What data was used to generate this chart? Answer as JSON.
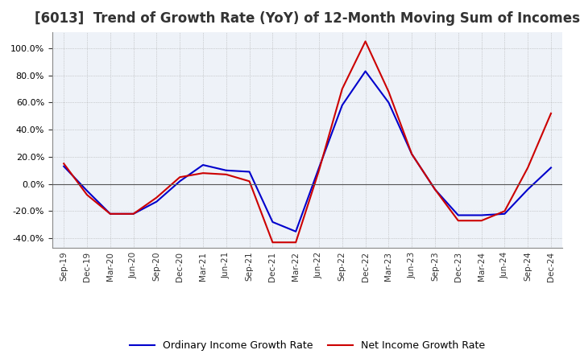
{
  "title": "[6013]  Trend of Growth Rate (YoY) of 12-Month Moving Sum of Incomes",
  "title_fontsize": 12,
  "ylim": [
    -0.47,
    1.12
  ],
  "yticks": [
    -0.4,
    -0.2,
    0.0,
    0.2,
    0.4,
    0.6,
    0.8,
    1.0
  ],
  "background_color": "#ffffff",
  "plot_bg_color": "#eef2f8",
  "grid_color": "#aaaaaa",
  "ordinary_color": "#0000cc",
  "net_color": "#cc0000",
  "legend_ordinary": "Ordinary Income Growth Rate",
  "legend_net": "Net Income Growth Rate",
  "dates": [
    "Sep-19",
    "Dec-19",
    "Mar-20",
    "Jun-20",
    "Sep-20",
    "Dec-20",
    "Mar-21",
    "Jun-21",
    "Sep-21",
    "Dec-21",
    "Mar-22",
    "Jun-22",
    "Sep-22",
    "Dec-22",
    "Mar-23",
    "Jun-23",
    "Sep-23",
    "Dec-23",
    "Mar-24",
    "Jun-24",
    "Sep-24",
    "Dec-24"
  ],
  "ordinary_income": [
    0.13,
    -0.05,
    -0.22,
    -0.22,
    -0.13,
    0.02,
    0.14,
    0.1,
    0.09,
    -0.28,
    -0.35,
    0.12,
    0.58,
    0.83,
    0.6,
    0.22,
    -0.04,
    -0.23,
    -0.23,
    -0.22,
    -0.04,
    0.12
  ],
  "net_income": [
    0.15,
    -0.08,
    -0.22,
    -0.22,
    -0.1,
    0.05,
    0.08,
    0.07,
    0.02,
    -0.43,
    -0.43,
    0.1,
    0.7,
    1.05,
    0.68,
    0.22,
    -0.04,
    -0.27,
    -0.27,
    -0.2,
    0.12,
    0.52
  ]
}
